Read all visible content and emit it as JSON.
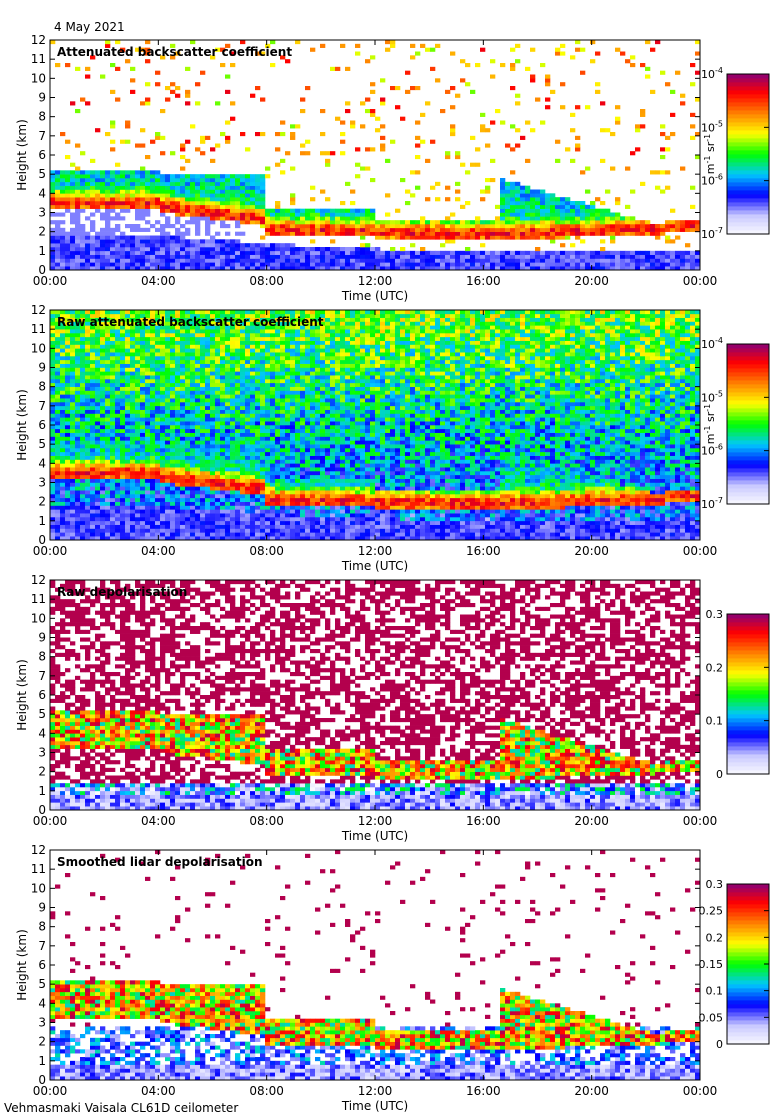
{
  "date": "4 May 2021",
  "footer": "Vehmasmaki Vaisala CL61D ceilometer",
  "x_ticks": [
    "00:00",
    "04:00",
    "08:00",
    "12:00",
    "16:00",
    "20:00",
    "00:00"
  ],
  "y_ticks": [
    "0",
    "1",
    "2",
    "3",
    "4",
    "5",
    "6",
    "7",
    "8",
    "9",
    "10",
    "11",
    "12"
  ],
  "xlabel": "Time (UTC)",
  "ylabel": "Height (km)",
  "chart_data": [
    {
      "type": "heatmap",
      "title": "Attenuated backscatter coefficient",
      "xlabel": "Time (UTC)",
      "ylabel": "Height (km)",
      "xlim": [
        "00:00",
        "24:00"
      ],
      "ylim": [
        0,
        12
      ],
      "colorbar": {
        "scale": "log",
        "ticks": [
          "10^-7",
          "10^-6",
          "10^-5",
          "10^-4"
        ],
        "unit": "m^-1 sr^-1"
      },
      "cloud_layers": [
        {
          "from": "00:00",
          "to": "04:00",
          "base_km": 3.2,
          "top_km": 5.5
        },
        {
          "from": "04:00",
          "to": "08:00",
          "base_km": 2.8,
          "top_km": 5.2
        },
        {
          "from": "08:00",
          "to": "16:30",
          "base_km": 1.5,
          "top_km": 3.0
        },
        {
          "from": "17:00",
          "to": "23:00",
          "base_km": 1.8,
          "top_km": 5.0
        }
      ]
    },
    {
      "type": "heatmap",
      "title": "Raw attenuated backscatter coefficient",
      "xlabel": "Time (UTC)",
      "ylabel": "Height (km)",
      "xlim": [
        "00:00",
        "24:00"
      ],
      "ylim": [
        0,
        12
      ],
      "colorbar": {
        "scale": "log",
        "ticks": [
          "10^-7",
          "10^-6",
          "10^-5",
          "10^-4"
        ],
        "unit": "m^-1 sr^-1"
      }
    },
    {
      "type": "heatmap",
      "title": "Raw depolarisation",
      "xlabel": "Time (UTC)",
      "ylabel": "Height (km)",
      "xlim": [
        "00:00",
        "24:00"
      ],
      "ylim": [
        0,
        12
      ],
      "colorbar": {
        "scale": "linear",
        "ticks": [
          "0",
          "0.1",
          "0.2",
          "0.3"
        ]
      }
    },
    {
      "type": "heatmap",
      "title": "Smoothed lidar depolarisation",
      "xlabel": "Time (UTC)",
      "ylabel": "Height (km)",
      "xlim": [
        "00:00",
        "24:00"
      ],
      "ylim": [
        0,
        12
      ],
      "colorbar": {
        "scale": "linear",
        "ticks": [
          "0",
          "0.05",
          "0.1",
          "0.15",
          "0.2",
          "0.25",
          "0.3"
        ]
      }
    }
  ],
  "colors": {
    "ramp": [
      "#ffffff",
      "#c8c8ff",
      "#0000ff",
      "#00c8ff",
      "#00ff00",
      "#ffff00",
      "#ff8000",
      "#ff0000",
      "#800080"
    ]
  }
}
